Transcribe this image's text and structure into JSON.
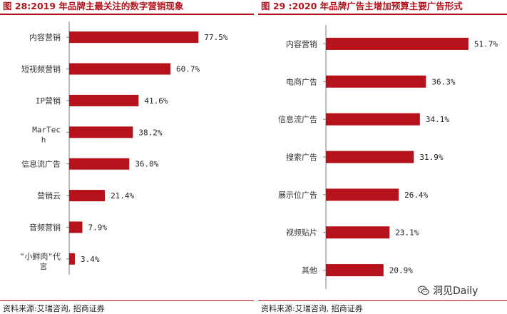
{
  "left": {
    "title": "图 28:2019 年品牌主最关注的数字营销现象",
    "source": "资料来源:艾瑞咨询, 招商证券"
  },
  "right": {
    "title": "图 29 :2020 年品牌广告主增加预算主要广告形式",
    "source": "资料来源:艾瑞咨询, 招商证券"
  },
  "watermark": {
    "text": "洞见Daily",
    "icon": "wechat-icon"
  },
  "colors": {
    "accent": "#b5121b",
    "axis": "#7f7f7f"
  },
  "chart_data": [
    {
      "type": "bar",
      "orientation": "horizontal",
      "title": "图 28:2019 年品牌主最关注的数字营销现象",
      "categories": [
        "内容营销",
        "短视频营销",
        "IP营销",
        "MarTech",
        "信息流广告",
        "营销云",
        "音频营销",
        "\"小鲜肉\"代言"
      ],
      "values": [
        77.5,
        60.7,
        41.6,
        38.2,
        36.0,
        21.4,
        7.9,
        3.4
      ],
      "value_labels": [
        "77.5%",
        "60.7%",
        "41.6%",
        "38.2%",
        "36.0%",
        "21.4%",
        "7.9%",
        "3.4%"
      ],
      "xlim": [
        0,
        100
      ],
      "grid": false,
      "legend": "none"
    },
    {
      "type": "bar",
      "orientation": "horizontal",
      "title": "图 29 :2020 年品牌广告主增加预算主要广告形式",
      "categories": [
        "内容营销",
        "电商广告",
        "信息流广告",
        "搜索广告",
        "展示位广告",
        "视频贴片",
        "其他"
      ],
      "values": [
        51.7,
        36.3,
        34.1,
        31.9,
        26.4,
        23.1,
        20.9
      ],
      "value_labels": [
        "51.7%",
        "36.3%",
        "34.1%",
        "31.9%",
        "26.4%",
        "23.1%",
        "20.9%"
      ],
      "xlim": [
        0,
        60
      ],
      "grid": false,
      "legend": "none"
    }
  ]
}
